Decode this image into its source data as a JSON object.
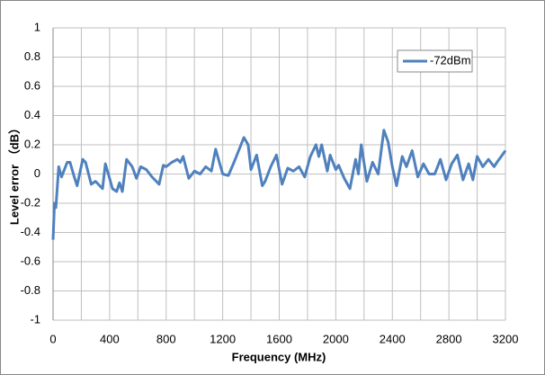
{
  "chart_data": {
    "type": "line",
    "x_label": "Frequency (MHz)",
    "y_label": "Level error （dB）",
    "xlim": [
      0,
      3200
    ],
    "ylim": [
      -1,
      1
    ],
    "xticks": [
      0,
      400,
      800,
      1200,
      1600,
      2000,
      2400,
      2800,
      3200
    ],
    "xminorticks": [
      200,
      600,
      1000,
      1400,
      1800,
      2200,
      2600,
      3000
    ],
    "yticks": [
      -1,
      -0.8,
      -0.6,
      -0.4,
      -0.2,
      0,
      0.2,
      0.4,
      0.6,
      0.8,
      1
    ],
    "grid": true,
    "legend": "upper-right",
    "x": [
      0,
      10,
      20,
      40,
      60,
      100,
      120,
      150,
      170,
      210,
      230,
      270,
      300,
      330,
      350,
      370,
      400,
      420,
      450,
      470,
      490,
      520,
      560,
      590,
      620,
      660,
      700,
      750,
      780,
      800,
      840,
      880,
      900,
      920,
      960,
      1000,
      1040,
      1080,
      1120,
      1150,
      1200,
      1240,
      1280,
      1350,
      1380,
      1400,
      1440,
      1480,
      1500,
      1540,
      1580,
      1620,
      1660,
      1700,
      1740,
      1780,
      1820,
      1860,
      1880,
      1900,
      1940,
      1960,
      2000,
      2020,
      2060,
      2100,
      2140,
      2160,
      2180,
      2220,
      2260,
      2300,
      2340,
      2370,
      2400,
      2430,
      2470,
      2500,
      2540,
      2580,
      2620,
      2660,
      2700,
      2740,
      2780,
      2820,
      2860,
      2900,
      2940,
      2970,
      3000,
      3040,
      3080,
      3120,
      3140,
      3200
    ],
    "series": [
      {
        "name": "-72dBm",
        "color": "#4f81bd",
        "values": [
          -0.45,
          -0.2,
          -0.23,
          0.05,
          -0.02,
          0.08,
          0.08,
          -0.02,
          -0.08,
          0.1,
          0.08,
          -0.07,
          -0.05,
          -0.08,
          -0.1,
          0.07,
          -0.03,
          -0.1,
          -0.12,
          -0.06,
          -0.12,
          0.1,
          0.05,
          -0.03,
          0.05,
          0.03,
          -0.02,
          -0.07,
          0.06,
          0.05,
          0.08,
          0.1,
          0.08,
          0.12,
          -0.03,
          0.02,
          0.0,
          0.05,
          0.02,
          0.17,
          0.0,
          -0.01,
          0.08,
          0.25,
          0.2,
          0.03,
          0.13,
          -0.08,
          -0.05,
          0.05,
          0.13,
          -0.07,
          0.04,
          0.02,
          0.05,
          -0.02,
          0.12,
          0.2,
          0.12,
          0.2,
          0.02,
          0.13,
          0.03,
          0.06,
          -0.03,
          -0.1,
          0.1,
          0.0,
          0.2,
          -0.05,
          0.08,
          0.0,
          0.3,
          0.22,
          0.05,
          -0.08,
          0.12,
          0.05,
          0.16,
          -0.02,
          0.07,
          0.0,
          0.0,
          0.1,
          -0.04,
          0.07,
          0.13,
          -0.04,
          0.07,
          -0.04,
          0.12,
          0.05,
          0.1,
          0.05,
          0.08,
          0.16
        ]
      }
    ]
  }
}
